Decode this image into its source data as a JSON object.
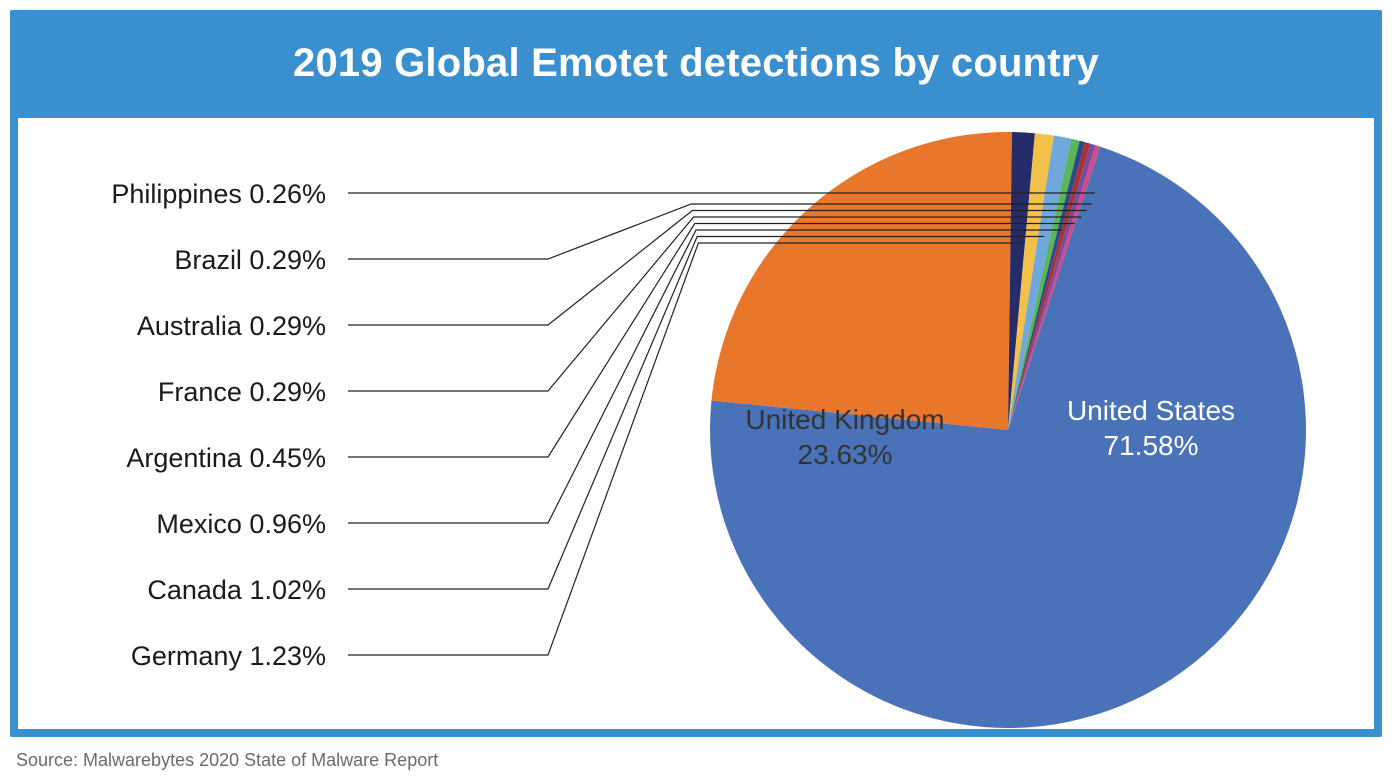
{
  "title": "2019 Global Emotet detections by country",
  "source": "Source: Malwarebytes 2020 State of Malware Report",
  "chart_data": {
    "type": "pie",
    "title": "2019 Global Emotet detections by country",
    "slices": [
      {
        "label": "United States",
        "value": 71.58,
        "display": "71.58%",
        "color": "#4a72b8",
        "label_mode": "inside",
        "label_color": "#ffffff"
      },
      {
        "label": "United Kingdom",
        "value": 23.63,
        "display": "23.63%",
        "color": "#e8762b",
        "label_mode": "inside",
        "label_color": "#333333"
      },
      {
        "label": "Germany",
        "value": 1.23,
        "display": "Germany 1.23%",
        "color": "#262b6a",
        "label_mode": "leader"
      },
      {
        "label": "Canada",
        "value": 1.02,
        "display": "Canada 1.02%",
        "color": "#f2c14a",
        "label_mode": "leader"
      },
      {
        "label": "Mexico",
        "value": 0.96,
        "display": "Mexico 0.96%",
        "color": "#6fa8dc",
        "label_mode": "leader"
      },
      {
        "label": "Argentina",
        "value": 0.45,
        "display": "Argentina 0.45%",
        "color": "#5bb55a",
        "label_mode": "leader"
      },
      {
        "label": "France",
        "value": 0.29,
        "display": "France 0.29%",
        "color": "#2c4a8a",
        "label_mode": "leader"
      },
      {
        "label": "Australia",
        "value": 0.29,
        "display": "Australia 0.29%",
        "color": "#a83232",
        "label_mode": "leader"
      },
      {
        "label": "Brazil",
        "value": 0.29,
        "display": "Brazil 0.29%",
        "color": "#7a4a9c",
        "label_mode": "leader"
      },
      {
        "label": "Philippines",
        "value": 0.26,
        "display": "Philippines 0.26%",
        "color": "#d04a8e",
        "label_mode": "leader"
      }
    ],
    "legend": "none"
  }
}
